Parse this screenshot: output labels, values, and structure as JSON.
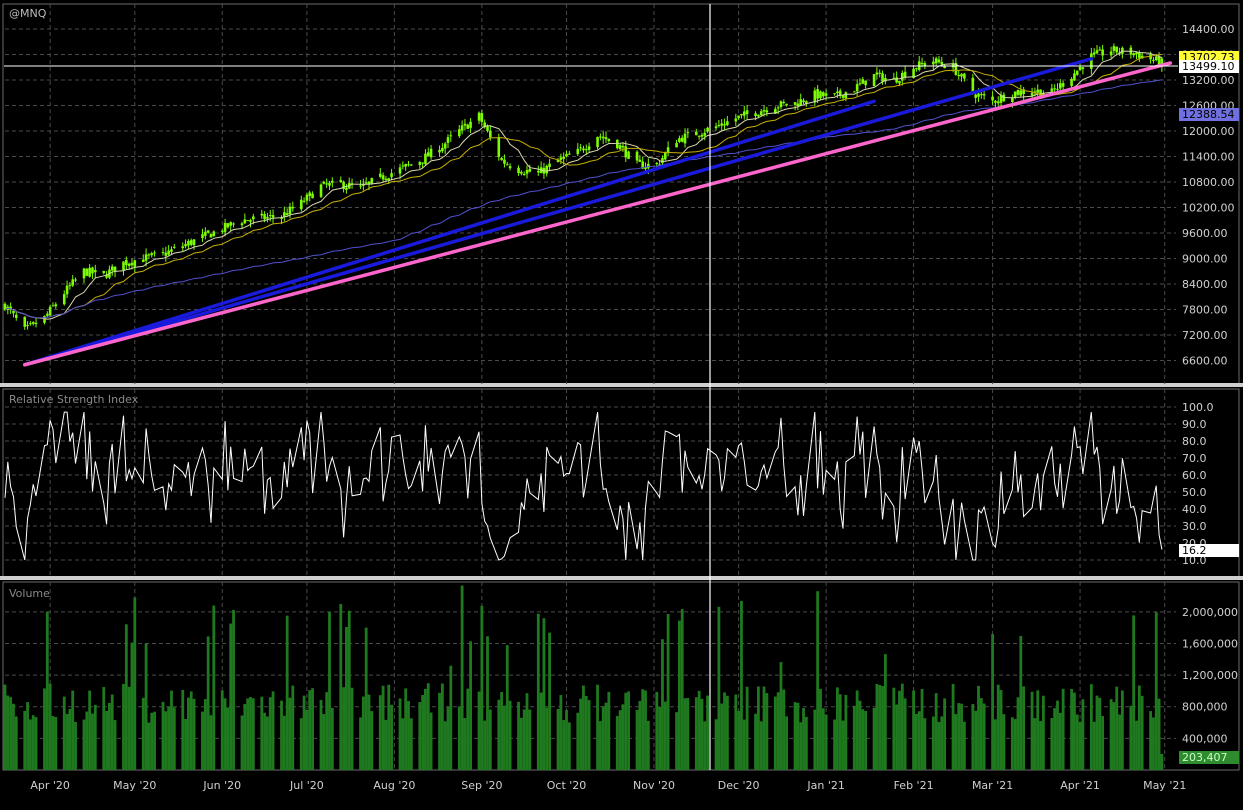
{
  "symbol": "@MNQ",
  "colors": {
    "background": "#000000",
    "grid": "#4a4a4a",
    "up_candle": "#7CFC00",
    "ma_fast": "#d8d8b0",
    "ma_mid": "#c8b000",
    "ma_slow": "#5050d0",
    "trendline_blue": "#1a1adc",
    "trendline_pink": "#ff66cc",
    "rsi_line": "#ffffff",
    "volume_bar": "#1f7a1f",
    "volume_badge": "#2e8b2e",
    "price_badge_last": "#ffff33",
    "price_badge_slow": "#7070e0"
  },
  "x_axis": {
    "labels": [
      "Apr '20",
      "May '20",
      "Jun '20",
      "Jul '20",
      "Aug '20",
      "Sep '20",
      "Oct '20",
      "Nov '20",
      "Dec '20",
      "Jan '21",
      "Feb '21",
      "Mar '21",
      "Apr '21",
      "May '21"
    ]
  },
  "price_panel": {
    "ticks": [
      "14400.00",
      "13800.00",
      "13200.00",
      "12600.00",
      "12000.00",
      "11400.00",
      "10800.00",
      "10200.00",
      "9600.00",
      "9000.00",
      "8400.00",
      "7800.00",
      "7200.00",
      "6600.00"
    ],
    "badges": {
      "last": "13702.73",
      "crosshair": "13499.10",
      "slow_ma": "12388.54"
    }
  },
  "rsi_panel": {
    "title": "Relative Strength Index",
    "ticks": [
      "100.0",
      "90.0",
      "80.0",
      "70.0",
      "60.0",
      "50.0",
      "40.0",
      "30.0",
      "20.0",
      "10.0"
    ],
    "badge": "16.2"
  },
  "volume_panel": {
    "title": "Volume",
    "ticks": [
      "2,000,000",
      "1,600,000",
      "1,200,000",
      "800,000",
      "400,000"
    ],
    "badge": "203,407"
  },
  "chart_data": [
    {
      "type": "candlestick",
      "title": "@MNQ",
      "ylim": [
        6200,
        14800
      ],
      "x_range": [
        "2020-03-16",
        "2021-05-05"
      ],
      "close_path": [
        [
          "2020-03-16",
          7900
        ],
        [
          "2020-03-23",
          7300
        ],
        [
          "2020-03-30",
          7600
        ],
        [
          "2020-04-06",
          8200
        ],
        [
          "2020-04-13",
          8700
        ],
        [
          "2020-04-20",
          8600
        ],
        [
          "2020-04-27",
          8900
        ],
        [
          "2020-05-04",
          9000
        ],
        [
          "2020-05-11",
          9100
        ],
        [
          "2020-05-18",
          9300
        ],
        [
          "2020-05-25",
          9500
        ],
        [
          "2020-06-01",
          9700
        ],
        [
          "2020-06-08",
          9900
        ],
        [
          "2020-06-15",
          9950
        ],
        [
          "2020-06-22",
          10000
        ],
        [
          "2020-06-29",
          10300
        ],
        [
          "2020-07-06",
          10700
        ],
        [
          "2020-07-13",
          10750
        ],
        [
          "2020-07-20",
          10650
        ],
        [
          "2020-07-27",
          10900
        ],
        [
          "2020-08-03",
          11100
        ],
        [
          "2020-08-10",
          11300
        ],
        [
          "2020-08-17",
          11600
        ],
        [
          "2020-08-24",
          12000
        ],
        [
          "2020-08-31",
          12350
        ],
        [
          "2020-09-08",
          11300
        ],
        [
          "2020-09-14",
          11100
        ],
        [
          "2020-09-21",
          11000
        ],
        [
          "2020-09-28",
          11300
        ],
        [
          "2020-10-05",
          11500
        ],
        [
          "2020-10-12",
          11900
        ],
        [
          "2020-10-19",
          11700
        ],
        [
          "2020-10-26",
          11200
        ],
        [
          "2020-11-02",
          11200
        ],
        [
          "2020-11-09",
          11800
        ],
        [
          "2020-11-16",
          11950
        ],
        [
          "2020-11-23",
          12100
        ],
        [
          "2020-11-30",
          12300
        ],
        [
          "2020-12-07",
          12450
        ],
        [
          "2020-12-14",
          12600
        ],
        [
          "2020-12-21",
          12650
        ],
        [
          "2020-12-28",
          12850
        ],
        [
          "2021-01-04",
          12800
        ],
        [
          "2021-01-11",
          13000
        ],
        [
          "2021-01-18",
          13300
        ],
        [
          "2021-01-25",
          13200
        ],
        [
          "2021-02-01",
          13500
        ],
        [
          "2021-02-08",
          13650
        ],
        [
          "2021-02-15",
          13500
        ],
        [
          "2021-02-22",
          12900
        ],
        [
          "2021-03-01",
          12700
        ],
        [
          "2021-03-08",
          12900
        ],
        [
          "2021-03-15",
          12950
        ],
        [
          "2021-03-22",
          12900
        ],
        [
          "2021-03-29",
          13300
        ],
        [
          "2021-04-05",
          13750
        ],
        [
          "2021-04-12",
          13900
        ],
        [
          "2021-04-19",
          13850
        ],
        [
          "2021-04-26",
          13700
        ],
        [
          "2021-04-30",
          13600
        ]
      ],
      "last": 13702.73,
      "crosshair_price": 13499.1,
      "slow_ma_last": 12388.54
    },
    {
      "type": "line",
      "title": "Relative Strength Index",
      "ylim": [
        5,
        102
      ],
      "last": 16.2
    },
    {
      "type": "bar",
      "title": "Volume",
      "ylim": [
        0,
        2150000
      ],
      "last": 203407
    }
  ]
}
